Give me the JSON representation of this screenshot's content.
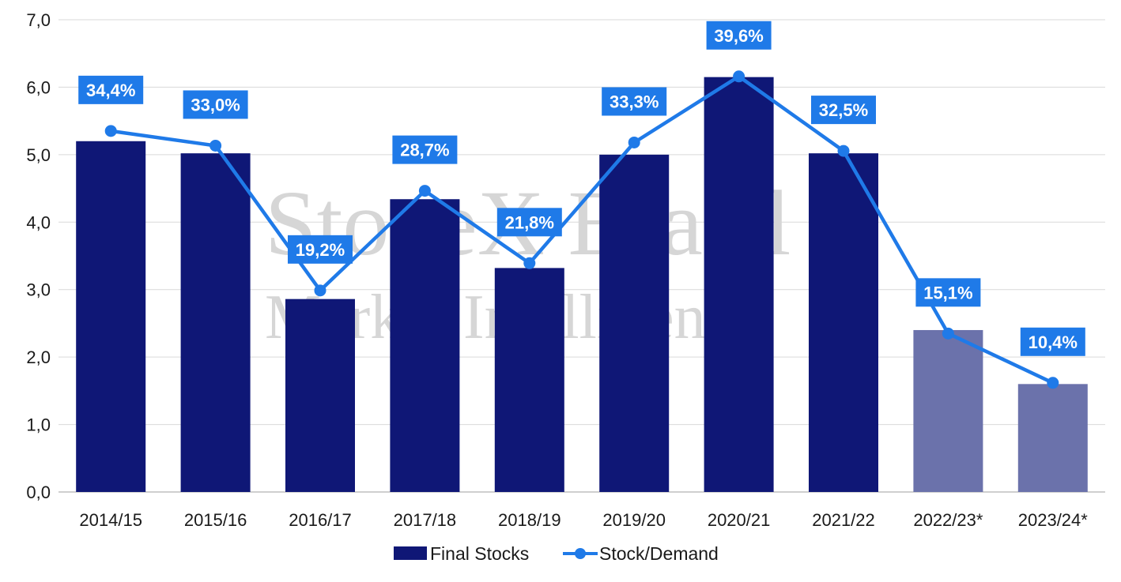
{
  "chart_data": {
    "type": "bar",
    "categories": [
      "2014/15",
      "2015/16",
      "2016/17",
      "2017/18",
      "2018/19",
      "2019/20",
      "2020/21",
      "2021/22",
      "2022/23*",
      "2023/24*"
    ],
    "ylim": [
      0,
      7
    ],
    "yticks": [
      "0,0",
      "1,0",
      "2,0",
      "3,0",
      "4,0",
      "5,0",
      "6,0",
      "7,0"
    ],
    "grid": true,
    "legend_position": "bottom",
    "series": [
      {
        "name": "Final Stocks",
        "type": "bar",
        "values": [
          5.2,
          5.02,
          2.86,
          4.34,
          3.32,
          5.0,
          6.15,
          5.02,
          2.4,
          1.6
        ],
        "color": "#0f1776",
        "projected_color": "#6b72ab",
        "projected_from_index": 8
      },
      {
        "name": "Stock/Demand",
        "type": "line",
        "values": [
          34.4,
          33.0,
          19.2,
          28.7,
          21.8,
          33.3,
          39.6,
          32.5,
          15.1,
          10.4
        ],
        "labels": [
          "34,4%",
          "33,0%",
          "19,2%",
          "28,7%",
          "21,8%",
          "33,3%",
          "39,6%",
          "32,5%",
          "15,1%",
          "10,4%"
        ],
        "color": "#1f7ae8"
      }
    ]
  },
  "watermark": {
    "line1": "StoneX Brasil",
    "line2": "Market Intelligence"
  }
}
